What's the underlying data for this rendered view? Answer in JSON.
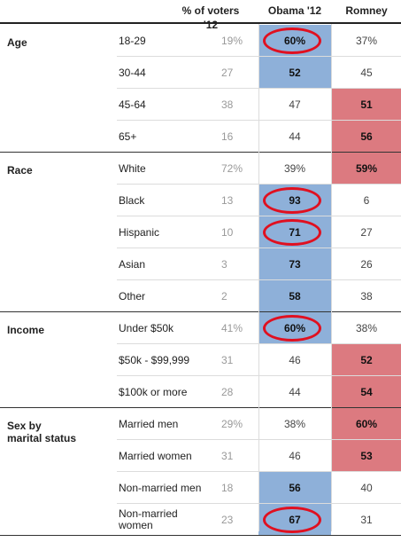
{
  "header": {
    "pct_voters": "% of voters '12",
    "obama": "Obama '12",
    "romney": "Romney"
  },
  "colors": {
    "obama_win": "#8eb0d9",
    "romney_win": "#dc7a80",
    "circle": "#e01020"
  },
  "rows": [
    {
      "group": "Age",
      "sub": "18-29",
      "pct": "19%",
      "obama": "60%",
      "romney": "37%",
      "winner": "obama",
      "circled": true
    },
    {
      "group": "",
      "sub": "30-44",
      "pct": "27",
      "obama": "52",
      "romney": "45",
      "winner": "obama",
      "circled": false
    },
    {
      "group": "",
      "sub": "45-64",
      "pct": "38",
      "obama": "47",
      "romney": "51",
      "winner": "romney",
      "circled": false
    },
    {
      "group": "",
      "sub": "65+",
      "pct": "16",
      "obama": "44",
      "romney": "56",
      "winner": "romney",
      "circled": false
    },
    {
      "group": "Race",
      "sub": "White",
      "pct": "72%",
      "obama": "39%",
      "romney": "59%",
      "winner": "romney",
      "circled": false
    },
    {
      "group": "",
      "sub": "Black",
      "pct": "13",
      "obama": "93",
      "romney": "6",
      "winner": "obama",
      "circled": true
    },
    {
      "group": "",
      "sub": "Hispanic",
      "pct": "10",
      "obama": "71",
      "romney": "27",
      "winner": "obama",
      "circled": true
    },
    {
      "group": "",
      "sub": "Asian",
      "pct": "3",
      "obama": "73",
      "romney": "26",
      "winner": "obama",
      "circled": false
    },
    {
      "group": "",
      "sub": "Other",
      "pct": "2",
      "obama": "58",
      "romney": "38",
      "winner": "obama",
      "circled": false
    },
    {
      "group": "Income",
      "sub": "Under $50k",
      "pct": "41%",
      "obama": "60%",
      "romney": "38%",
      "winner": "obama",
      "circled": true
    },
    {
      "group": "",
      "sub": "$50k - $99,999",
      "pct": "31",
      "obama": "46",
      "romney": "52",
      "winner": "romney",
      "circled": false
    },
    {
      "group": "",
      "sub": "$100k or more",
      "pct": "28",
      "obama": "44",
      "romney": "54",
      "winner": "romney",
      "circled": false
    },
    {
      "group": "Sex by\nmarital status",
      "sub": "Married men",
      "pct": "29%",
      "obama": "38%",
      "romney": "60%",
      "winner": "romney",
      "circled": false
    },
    {
      "group": "",
      "sub": "Married women",
      "pct": "31",
      "obama": "46",
      "romney": "53",
      "winner": "romney",
      "circled": false
    },
    {
      "group": "",
      "sub": "Non-married men",
      "pct": "18",
      "obama": "56",
      "romney": "40",
      "winner": "obama",
      "circled": false
    },
    {
      "group": "",
      "sub": "Non-married\nwomen",
      "pct": "23",
      "obama": "67",
      "romney": "31",
      "winner": "obama",
      "circled": true
    }
  ]
}
